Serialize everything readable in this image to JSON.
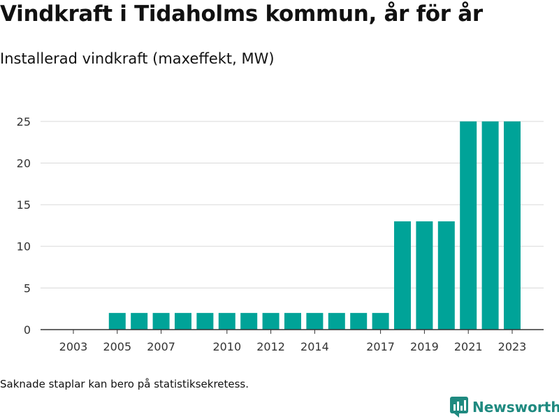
{
  "header": {
    "title": "Vindkraft i Tidaholms kommun, år för år",
    "subtitle": "Installerad vindkraft (maxeffekt, MW)"
  },
  "footer": {
    "note": "Saknade staplar kan bero på statistiksekretess.",
    "brand": "Newsworthy",
    "brand_icon": "newsworthy-logo-icon"
  },
  "colors": {
    "bar": "#00a398",
    "grid": "#d9d9d9",
    "axis": "#333333",
    "brand": "#1f8a80"
  },
  "chart_data": {
    "type": "bar",
    "categories": [
      "2003",
      "2004",
      "2005",
      "2006",
      "2007",
      "2008",
      "2009",
      "2010",
      "2011",
      "2012",
      "2013",
      "2014",
      "2015",
      "2016",
      "2017",
      "2018",
      "2019",
      "2020",
      "2021",
      "2022",
      "2023"
    ],
    "values": [
      0,
      0,
      2,
      2,
      2,
      2,
      2,
      2,
      2,
      2,
      2,
      2,
      2,
      2,
      2,
      13,
      13,
      13,
      25,
      25,
      25
    ],
    "xtick_labels": [
      "2003",
      "2005",
      "2007",
      "2010",
      "2012",
      "2014",
      "2017",
      "2019",
      "2021",
      "2023"
    ],
    "yticks": [
      0,
      5,
      10,
      15,
      20,
      25
    ],
    "ylim": [
      0,
      27
    ],
    "grid": true,
    "title": "Vindkraft i Tidaholms kommun, år för år",
    "subtitle": "Installerad vindkraft (maxeffekt, MW)",
    "xlabel": "",
    "ylabel": ""
  }
}
